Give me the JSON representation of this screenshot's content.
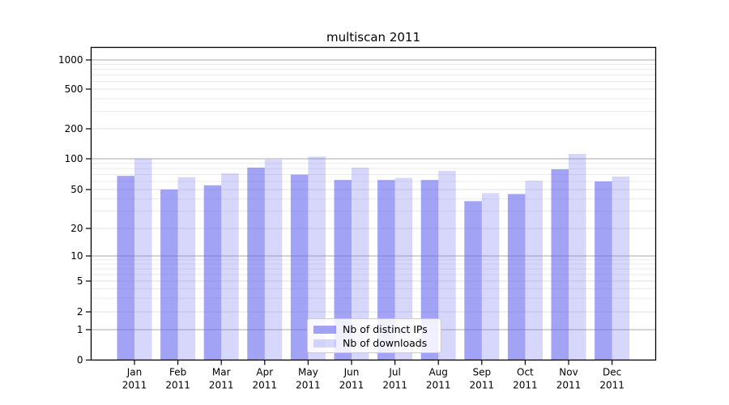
{
  "chart_data": {
    "type": "bar",
    "title": "multiscan 2011",
    "categories": [
      "Jan",
      "Feb",
      "Mar",
      "Apr",
      "May",
      "Jun",
      "Jul",
      "Aug",
      "Sep",
      "Oct",
      "Nov",
      "Dec"
    ],
    "category_year": "2011",
    "series": [
      {
        "name": "Nb of distinct IPs",
        "values": [
          68,
          50,
          55,
          82,
          70,
          62,
          62,
          62,
          38,
          45,
          79,
          60
        ],
        "color": "rgba(102,102,238,0.60)"
      },
      {
        "name": "Nb of downloads",
        "values": [
          100,
          66,
          72,
          98,
          105,
          82,
          65,
          76,
          46,
          61,
          112,
          67
        ],
        "color": "rgba(102,102,238,0.26)"
      }
    ],
    "y_axis": {
      "scale": "symlog",
      "ticks": [
        {
          "value": 0,
          "label": "0"
        },
        {
          "value": 1,
          "label": "1"
        },
        {
          "value": 2,
          "label": "2"
        },
        {
          "value": 5,
          "label": "5"
        },
        {
          "value": 10,
          "label": "10"
        },
        {
          "value": 20,
          "label": "20"
        },
        {
          "value": 50,
          "label": "50"
        },
        {
          "value": 100,
          "label": "100"
        },
        {
          "value": 200,
          "label": "200"
        },
        {
          "value": 500,
          "label": "500"
        },
        {
          "value": 1000,
          "label": "1000"
        }
      ],
      "major_values": [
        1,
        10,
        100,
        1000
      ],
      "minor_ticks": [
        3,
        4,
        6,
        7,
        8,
        9,
        30,
        40,
        60,
        70,
        80,
        90,
        300,
        400,
        600,
        700,
        800,
        900
      ]
    },
    "legend": {
      "position": "lower center"
    },
    "grid": {
      "major_color": "#aaaaaa",
      "labeled_color": "#e2e2e2",
      "minor_color": "#ebebeb"
    },
    "axis_color": "#000000",
    "ylim": [
      0,
      1400
    ]
  }
}
